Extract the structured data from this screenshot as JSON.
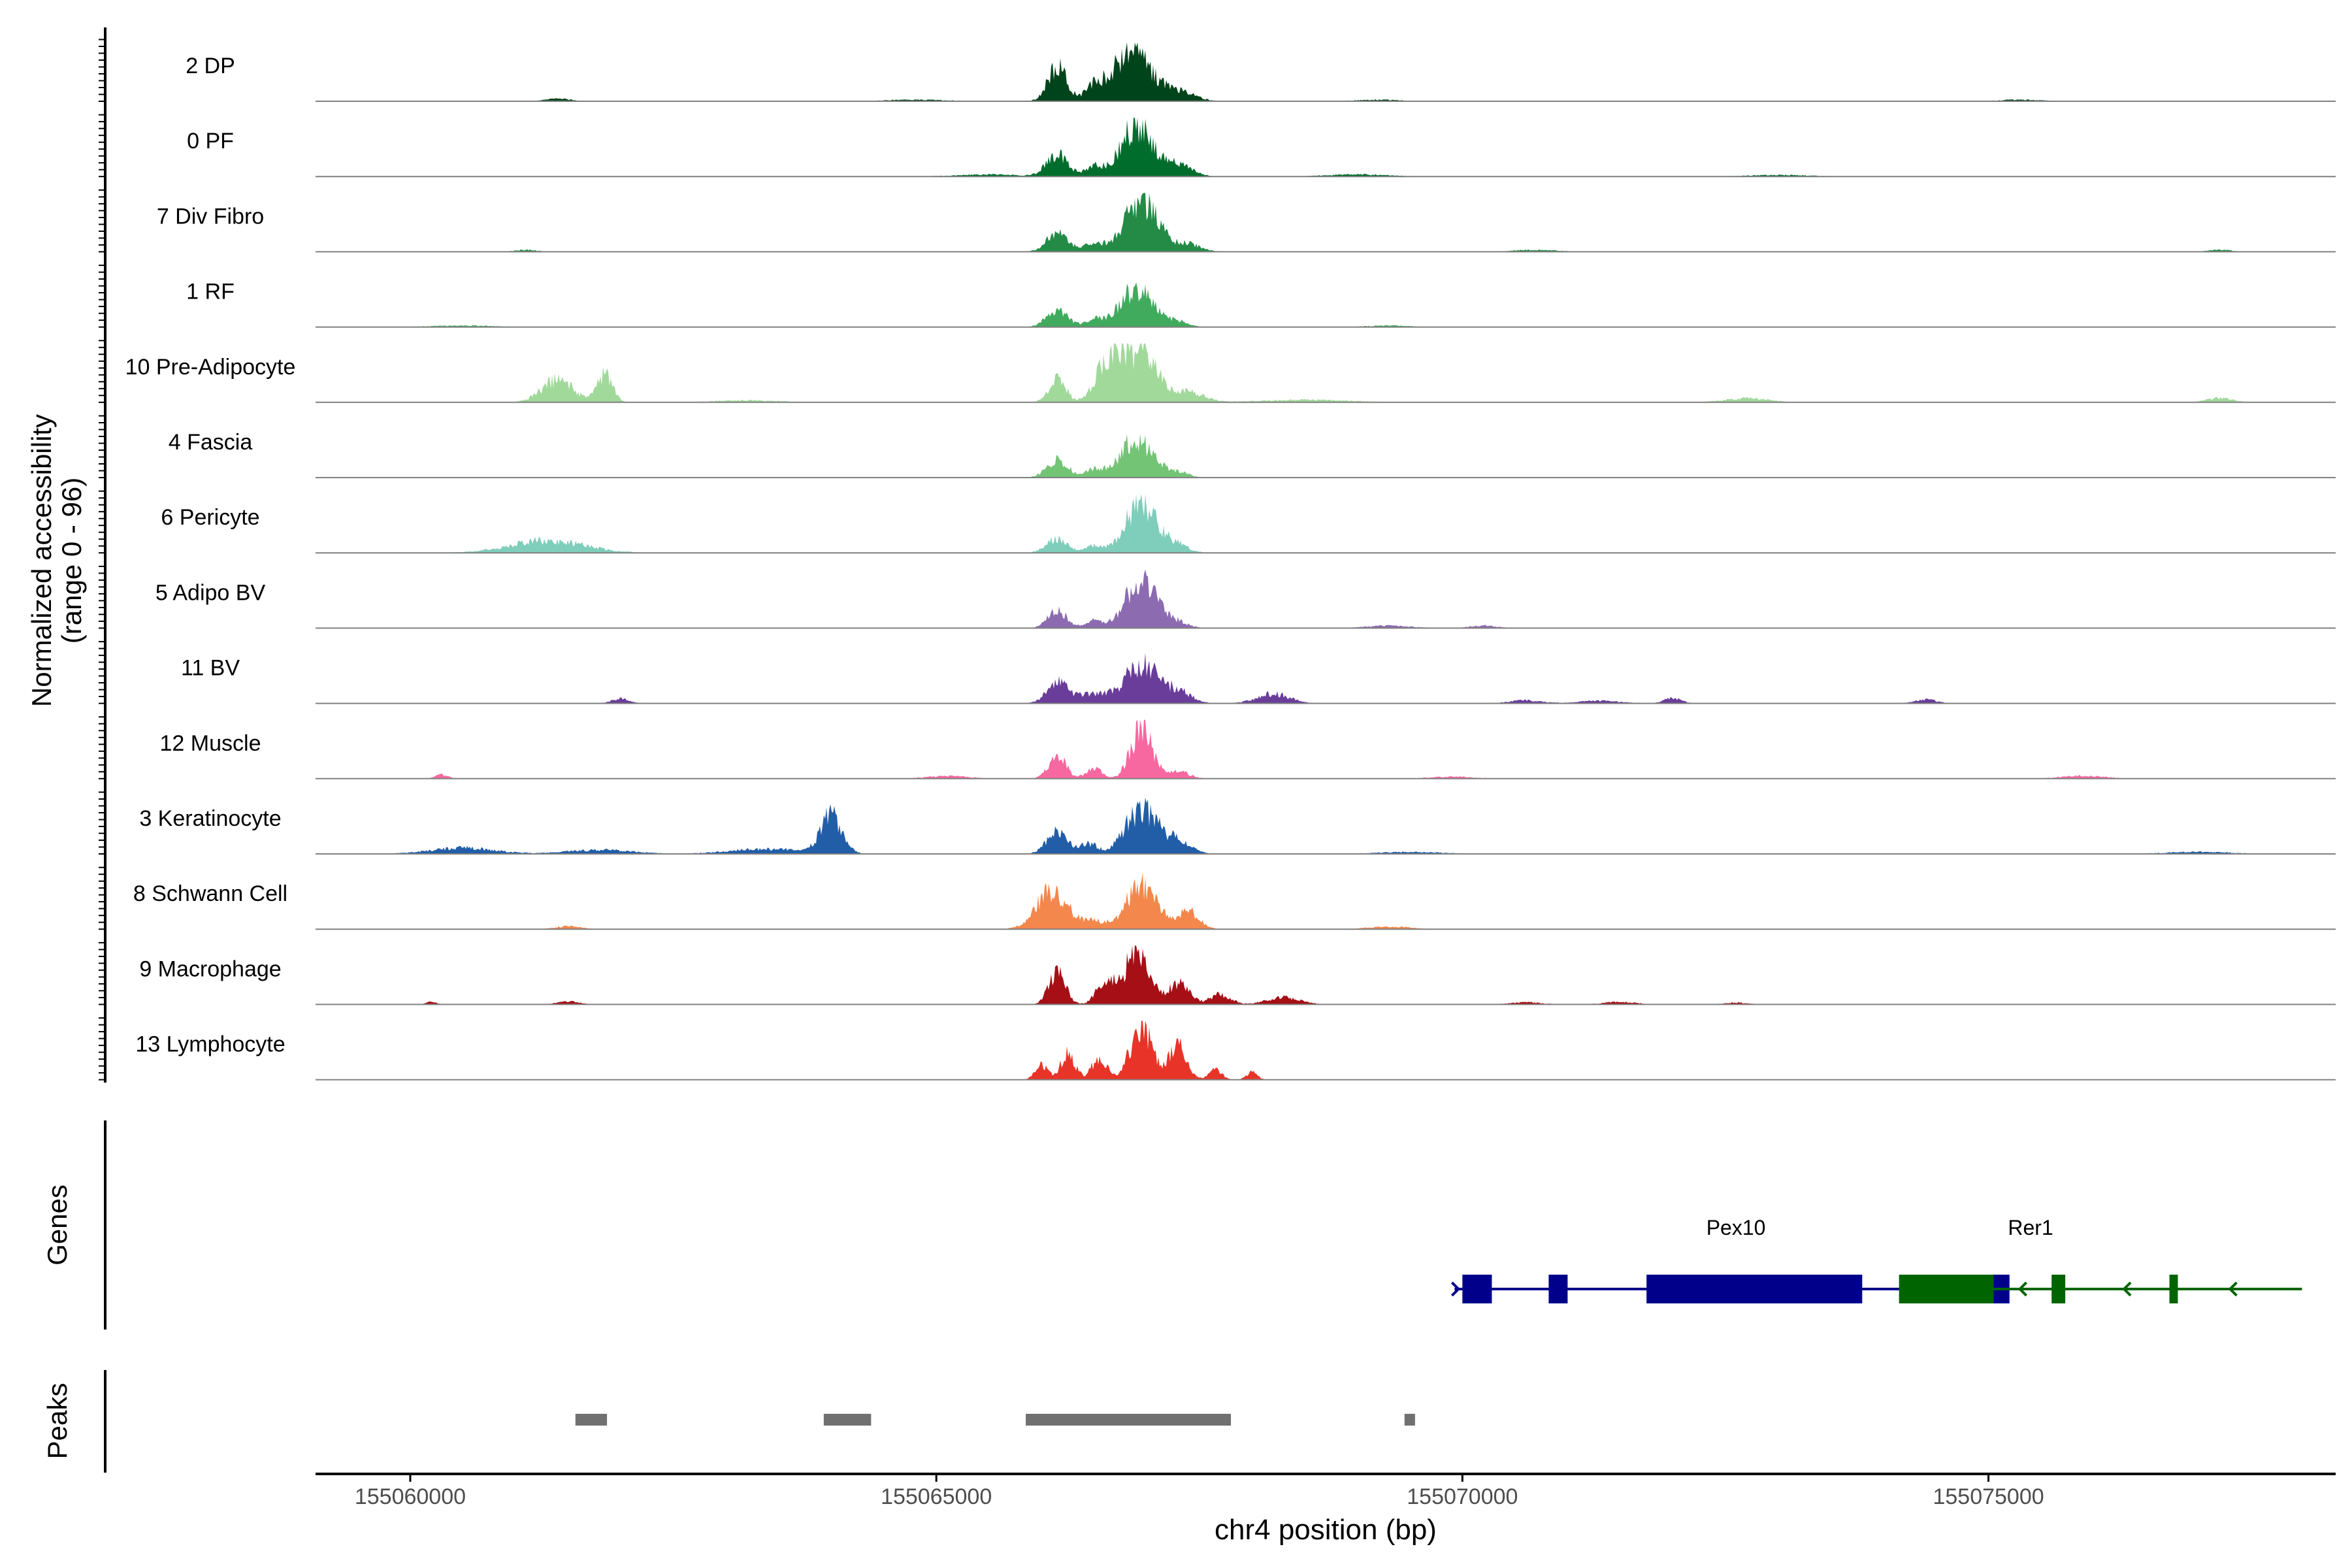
{
  "chart_data": {
    "type": "area",
    "title": "",
    "ylabel": "Normalized accessibility\n(range 0 - 96)",
    "xlabel": "chr4 position (bp)",
    "xlim": [
      155059100,
      155078300
    ],
    "ylim": [
      0,
      96
    ],
    "xticks": [
      155060000,
      155065000,
      155070000,
      155075000
    ],
    "tracks": [
      {
        "name": "2 DP",
        "color": "#00441b",
        "peaks": [
          [
            155066150,
            70,
            90
          ],
          [
            155066500,
            25,
            80
          ],
          [
            155066850,
            98,
            180
          ],
          [
            155067300,
            20,
            150
          ],
          [
            155061400,
            5,
            120
          ],
          [
            155064800,
            3,
            300
          ],
          [
            155069200,
            3,
            200
          ],
          [
            155075300,
            3,
            200
          ]
        ]
      },
      {
        "name": "0 PF",
        "color": "#006d2c",
        "peaks": [
          [
            155066150,
            45,
            100
          ],
          [
            155066500,
            20,
            80
          ],
          [
            155066900,
            100,
            150
          ],
          [
            155067300,
            25,
            130
          ],
          [
            155065500,
            4,
            300
          ],
          [
            155069000,
            4,
            300
          ],
          [
            155073000,
            3,
            300
          ]
        ]
      },
      {
        "name": "7 Div Fibro",
        "color": "#238b45",
        "peaks": [
          [
            155066150,
            40,
            100
          ],
          [
            155066500,
            15,
            100
          ],
          [
            155066950,
            100,
            160
          ],
          [
            155067400,
            15,
            120
          ],
          [
            155061100,
            4,
            100
          ],
          [
            155070700,
            4,
            200
          ],
          [
            155077200,
            4,
            100
          ]
        ]
      },
      {
        "name": "1 RF",
        "color": "#41ab5d",
        "peaks": [
          [
            155066150,
            35,
            100
          ],
          [
            155066500,
            15,
            80
          ],
          [
            155066900,
            75,
            160
          ],
          [
            155067300,
            10,
            100
          ],
          [
            155060500,
            3,
            300
          ],
          [
            155069300,
            3,
            200
          ]
        ]
      },
      {
        "name": "10 Pre-Adipocyte",
        "color": "#a1d99b",
        "peaks": [
          [
            155061400,
            45,
            150
          ],
          [
            155061850,
            55,
            70
          ],
          [
            155066150,
            50,
            80
          ],
          [
            155066650,
            90,
            120
          ],
          [
            155066950,
            95,
            150
          ],
          [
            155067400,
            20,
            150
          ],
          [
            155072700,
            8,
            200
          ],
          [
            155077200,
            8,
            120
          ],
          [
            155068500,
            5,
            400
          ],
          [
            155063200,
            4,
            300
          ]
        ]
      },
      {
        "name": "4 Fascia",
        "color": "#74c476",
        "peaks": [
          [
            155066150,
            35,
            100
          ],
          [
            155066500,
            15,
            80
          ],
          [
            155066900,
            75,
            160
          ],
          [
            155067300,
            10,
            100
          ]
        ]
      },
      {
        "name": "6 Pericyte",
        "color": "#7fcdbb",
        "peaks": [
          [
            155061300,
            25,
            350
          ],
          [
            155066150,
            30,
            100
          ],
          [
            155066500,
            15,
            80
          ],
          [
            155066950,
            100,
            150
          ],
          [
            155067300,
            15,
            100
          ]
        ]
      },
      {
        "name": "5 Adipo BV",
        "color": "#8c6bb1",
        "peaks": [
          [
            155066150,
            35,
            90
          ],
          [
            155066500,
            15,
            80
          ],
          [
            155066950,
            95,
            150
          ],
          [
            155067300,
            10,
            100
          ],
          [
            155069300,
            5,
            200
          ],
          [
            155070200,
            5,
            120
          ]
        ]
      },
      {
        "name": "11 BV",
        "color": "#6a3d9a",
        "peaks": [
          [
            155066150,
            40,
            100
          ],
          [
            155066500,
            20,
            150
          ],
          [
            155066950,
            80,
            150
          ],
          [
            155067300,
            25,
            120
          ],
          [
            155068200,
            20,
            150
          ],
          [
            155062000,
            10,
            80
          ],
          [
            155072000,
            10,
            80
          ],
          [
            155070600,
            6,
            150
          ],
          [
            155074400,
            8,
            100
          ],
          [
            155071300,
            5,
            200
          ]
        ]
      },
      {
        "name": "12 Muscle",
        "color": "#f768a1",
        "peaks": [
          [
            155066150,
            50,
            80
          ],
          [
            155066500,
            20,
            80
          ],
          [
            155066950,
            100,
            100
          ],
          [
            155067300,
            15,
            100
          ],
          [
            155060300,
            8,
            60
          ],
          [
            155065100,
            5,
            200
          ],
          [
            155069900,
            4,
            200
          ],
          [
            155075900,
            6,
            200
          ]
        ]
      },
      {
        "name": "3 Keratinocyte",
        "color": "#225ea8",
        "peaks": [
          [
            155064000,
            75,
            100
          ],
          [
            155066150,
            45,
            100
          ],
          [
            155066450,
            20,
            80
          ],
          [
            155066950,
            90,
            150
          ],
          [
            155067300,
            25,
            120
          ],
          [
            155060500,
            12,
            300
          ],
          [
            155063400,
            10,
            350
          ],
          [
            155061800,
            8,
            300
          ],
          [
            155069500,
            4,
            300
          ],
          [
            155077000,
            4,
            300
          ]
        ]
      },
      {
        "name": "8 Schwann Cell",
        "color": "#f4874b",
        "peaks": [
          [
            155066100,
            75,
            150
          ],
          [
            155066500,
            15,
            100
          ],
          [
            155066950,
            85,
            150
          ],
          [
            155067400,
            35,
            100
          ],
          [
            155061500,
            6,
            120
          ],
          [
            155069300,
            5,
            200
          ]
        ]
      },
      {
        "name": "9 Macrophage",
        "color": "#a50f15",
        "peaks": [
          [
            155066150,
            60,
            80
          ],
          [
            155066600,
            45,
            80
          ],
          [
            155066900,
            100,
            120
          ],
          [
            155067300,
            40,
            100
          ],
          [
            155067700,
            20,
            100
          ],
          [
            155068300,
            15,
            150
          ],
          [
            155061500,
            6,
            100
          ],
          [
            155060200,
            5,
            50
          ],
          [
            155070600,
            4,
            150
          ],
          [
            155071500,
            5,
            150
          ],
          [
            155072600,
            4,
            100
          ]
        ]
      },
      {
        "name": "13 Lymphocyte",
        "color": "#e83428",
        "peaks": [
          [
            155066000,
            30,
            60
          ],
          [
            155066250,
            50,
            70
          ],
          [
            155066550,
            45,
            70
          ],
          [
            155066950,
            100,
            110
          ],
          [
            155067300,
            70,
            80
          ],
          [
            155067650,
            20,
            60
          ],
          [
            155068000,
            15,
            50
          ]
        ]
      }
    ],
    "genes": [
      {
        "name": "Pex10",
        "color": "#00008b",
        "start": 155069950,
        "end": 155072450,
        "strand": "+",
        "exons": [
          [
            155070000,
            155070280
          ],
          [
            155070820,
            155071000
          ],
          [
            155071750,
            155073800
          ],
          [
            155074500,
            155075200
          ]
        ],
        "label_x": 155072000
      },
      {
        "name": "Rer1",
        "color": "#006400",
        "start": 155074150,
        "end": 155077400,
        "strand": "-",
        "exons": [
          [
            155074150,
            155075050
          ],
          [
            155075600,
            155075730
          ],
          [
            155076720,
            155076800
          ]
        ],
        "label_x": 155075700
      }
    ],
    "peaks_track": {
      "color": "#707070",
      "regions": [
        [
          155061570,
          155061870
        ],
        [
          155063930,
          155064380
        ],
        [
          155065850,
          155067800
        ],
        [
          155069450,
          155069550
        ]
      ]
    },
    "panel_labels": {
      "genes": "Genes",
      "peaks": "Peaks"
    }
  }
}
